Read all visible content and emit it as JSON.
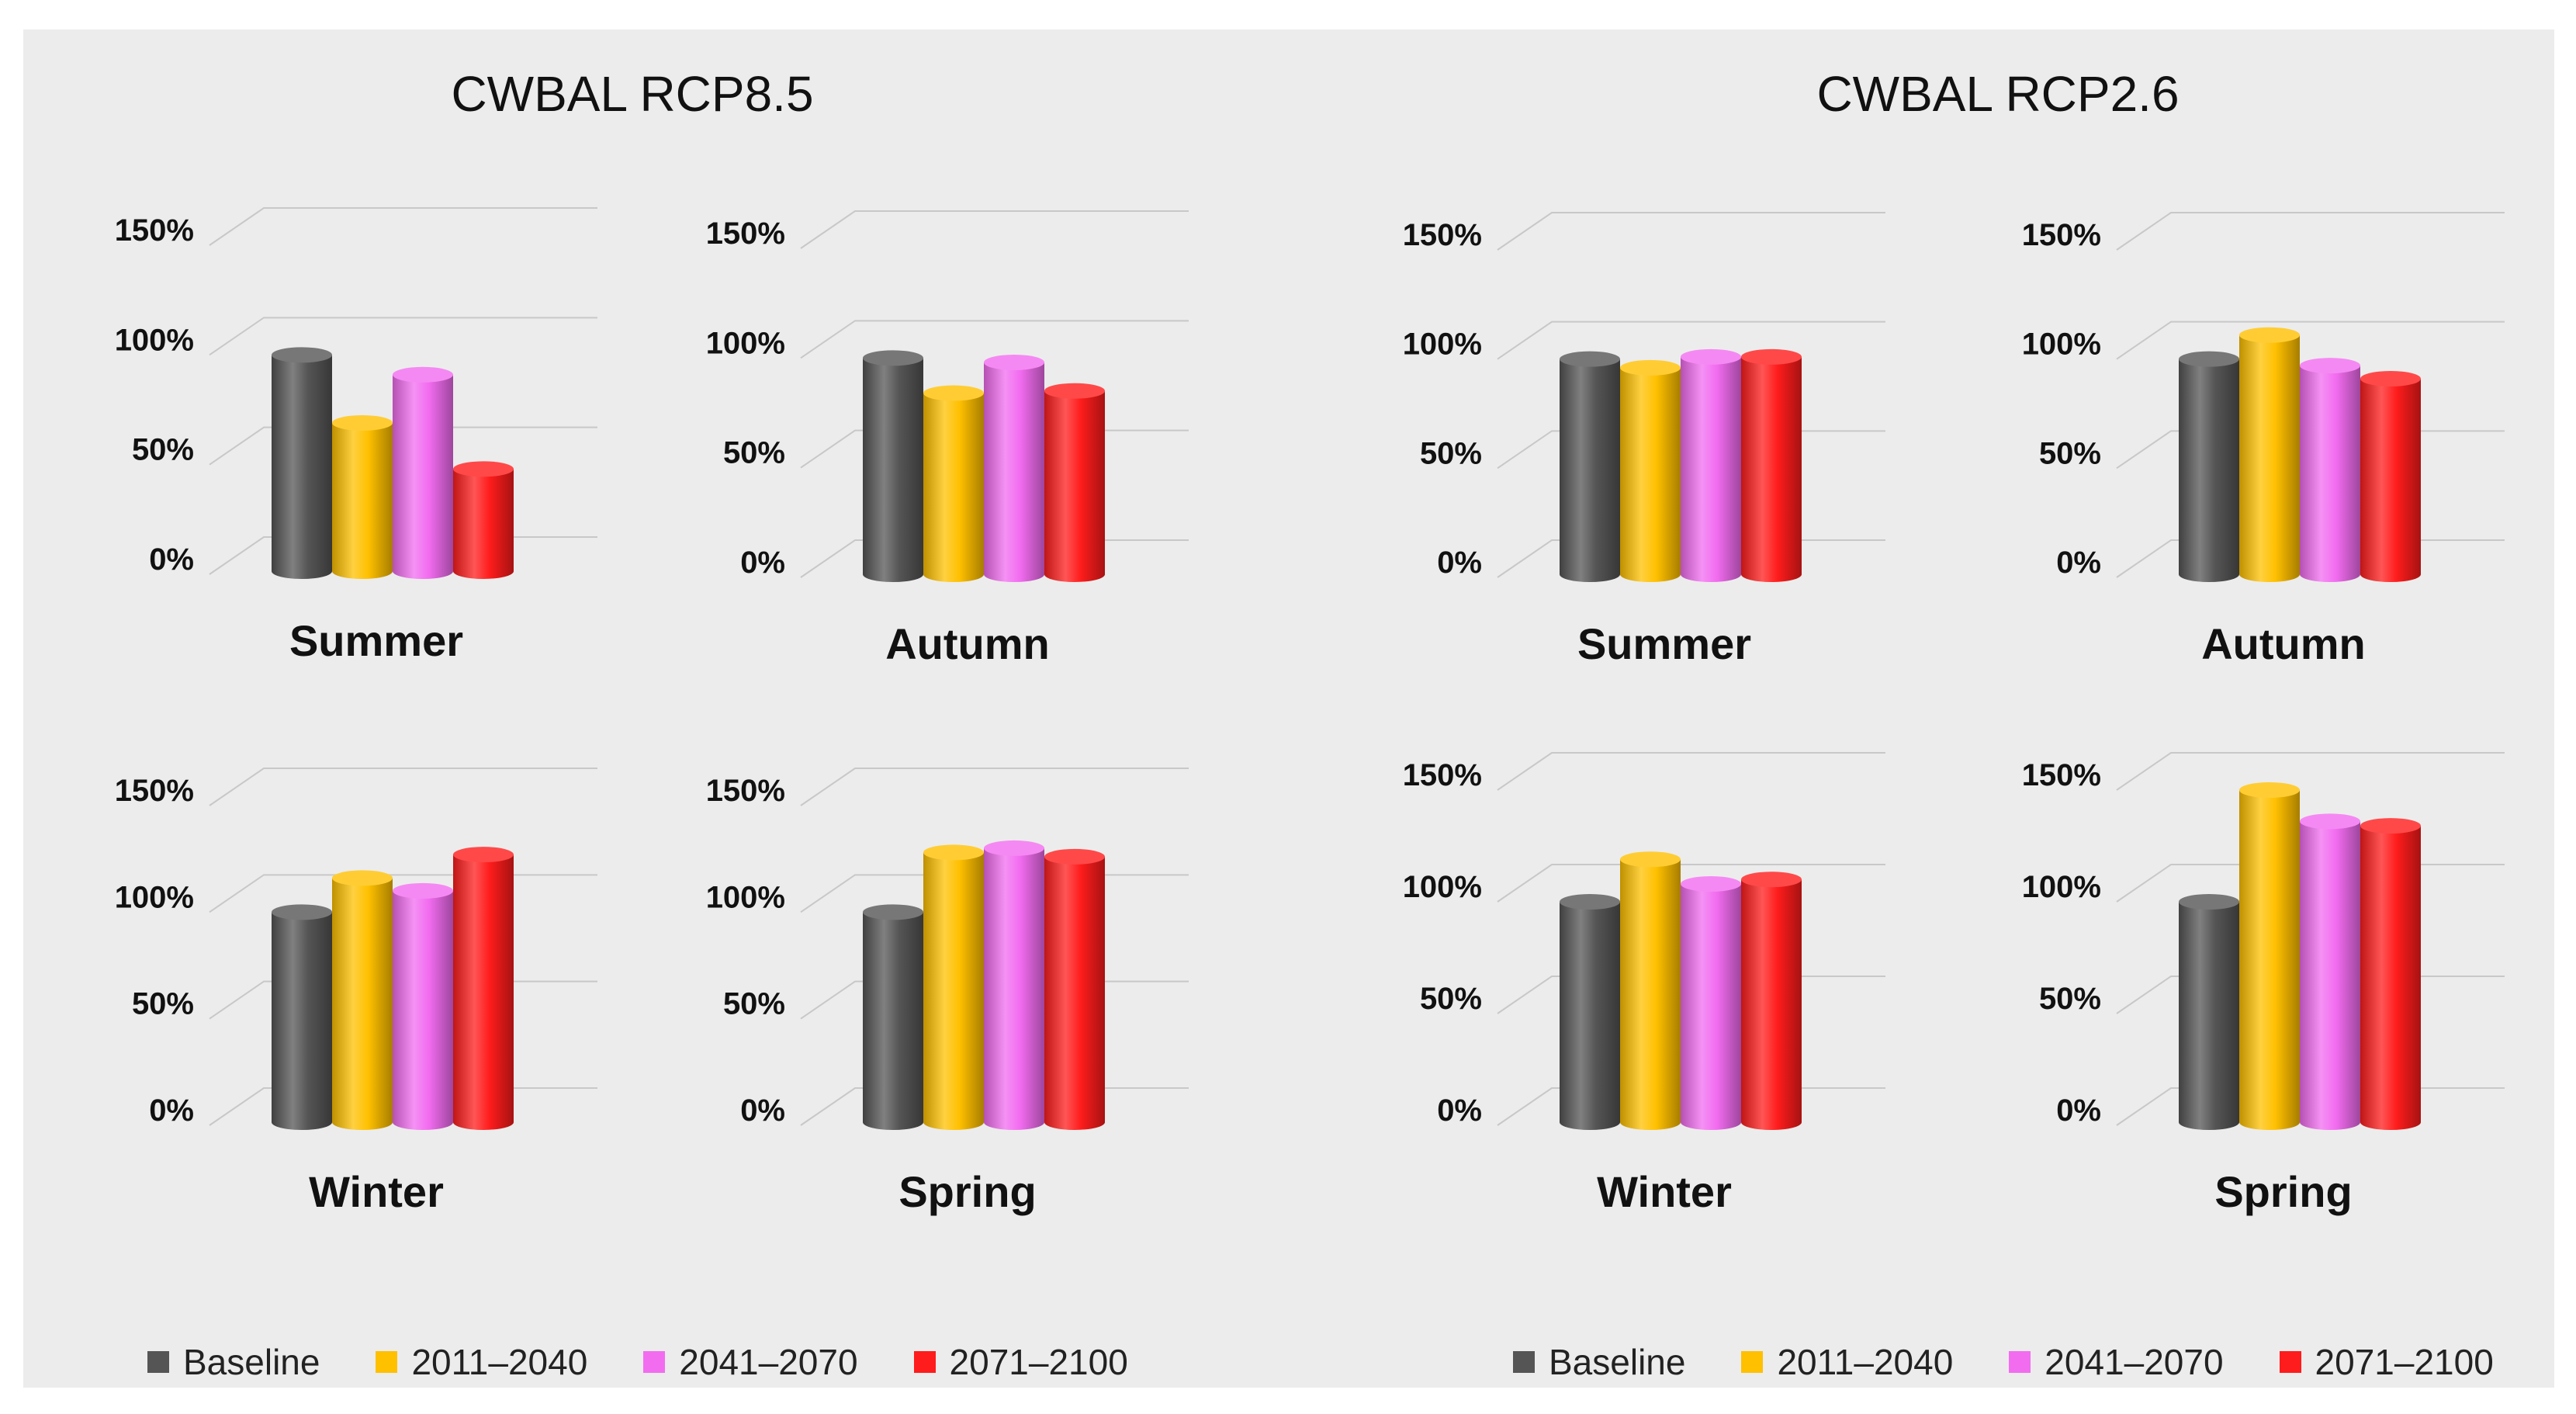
{
  "colors": {
    "background": "#ececec",
    "grid": "#c8c8c8",
    "series": [
      "#555555",
      "#ffc000",
      "#f26cf0",
      "#ff1c1c"
    ]
  },
  "panels": [
    {
      "title": "CWBAL RCP8.5"
    },
    {
      "title": "CWBAL RCP2.6"
    }
  ],
  "legends": [
    {
      "items": [
        "Baseline",
        "2011–2040",
        "2041–2070",
        "2071–2100"
      ]
    },
    {
      "items": [
        "Baseline",
        "2011–2040",
        "2041–2070",
        "2071–2100"
      ]
    }
  ],
  "chart_data": [
    {
      "type": "bar",
      "panel": "CWBAL RCP8.5",
      "title": "Summer",
      "categories": [
        "Baseline",
        "2011–2040",
        "2041–2070",
        "2071–2100"
      ],
      "values": [
        100,
        69,
        91,
        48
      ],
      "ylim": [
        0,
        150
      ],
      "yticks": [
        "0%",
        "50%",
        "100%",
        "150%"
      ]
    },
    {
      "type": "bar",
      "panel": "CWBAL RCP8.5",
      "title": "Autumn",
      "categories": [
        "Baseline",
        "2011–2040",
        "2041–2070",
        "2071–2100"
      ],
      "values": [
        100,
        84,
        98,
        85
      ],
      "ylim": [
        0,
        150
      ],
      "yticks": [
        "0%",
        "50%",
        "100%",
        "150%"
      ]
    },
    {
      "type": "bar",
      "panel": "CWBAL RCP8.5",
      "title": "Winter",
      "categories": [
        "Baseline",
        "2011–2040",
        "2041–2070",
        "2071–2100"
      ],
      "values": [
        100,
        116,
        110,
        127
      ],
      "ylim": [
        0,
        150
      ],
      "yticks": [
        "0%",
        "50%",
        "100%",
        "150%"
      ]
    },
    {
      "type": "bar",
      "panel": "CWBAL RCP8.5",
      "title": "Spring",
      "categories": [
        "Baseline",
        "2011–2040",
        "2041–2070",
        "2071–2100"
      ],
      "values": [
        100,
        128,
        130,
        126
      ],
      "ylim": [
        0,
        150
      ],
      "yticks": [
        "0%",
        "50%",
        "100%",
        "150%"
      ]
    },
    {
      "type": "bar",
      "panel": "CWBAL RCP2.6",
      "title": "Summer",
      "categories": [
        "Baseline",
        "2011–2040",
        "2041–2070",
        "2071–2100"
      ],
      "values": [
        100,
        96,
        101,
        101
      ],
      "ylim": [
        0,
        150
      ],
      "yticks": [
        "0%",
        "50%",
        "100%",
        "150%"
      ]
    },
    {
      "type": "bar",
      "panel": "CWBAL RCP2.6",
      "title": "Autumn",
      "categories": [
        "Baseline",
        "2011–2040",
        "2041–2070",
        "2071–2100"
      ],
      "values": [
        100,
        111,
        97,
        91
      ],
      "ylim": [
        0,
        150
      ],
      "yticks": [
        "0%",
        "50%",
        "100%",
        "150%"
      ]
    },
    {
      "type": "bar",
      "panel": "CWBAL RCP2.6",
      "title": "Winter",
      "categories": [
        "Baseline",
        "2011–2040",
        "2041–2070",
        "2071–2100"
      ],
      "values": [
        100,
        119,
        108,
        110
      ],
      "ylim": [
        0,
        150
      ],
      "yticks": [
        "0%",
        "50%",
        "100%",
        "150%"
      ]
    },
    {
      "type": "bar",
      "panel": "CWBAL RCP2.6",
      "title": "Spring",
      "categories": [
        "Baseline",
        "2011–2040",
        "2041–2070",
        "2071–2100"
      ],
      "values": [
        100,
        150,
        136,
        134
      ],
      "ylim": [
        0,
        150
      ],
      "yticks": [
        "0%",
        "50%",
        "100%",
        "150%"
      ]
    }
  ]
}
